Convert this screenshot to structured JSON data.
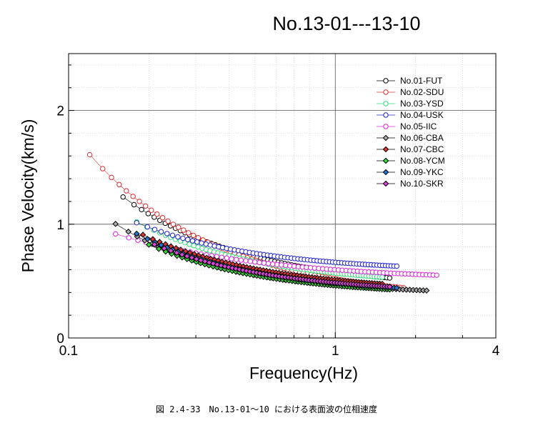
{
  "chart_data": {
    "type": "scatter",
    "title": "No.13-01---13-10",
    "xlabel": "Frequency(Hz)",
    "ylabel": "Phase Velocity(km/s)",
    "x_scale": "log",
    "xlim": [
      0.1,
      4
    ],
    "ylim": [
      0,
      2.5
    ],
    "x_ticks": [
      "0.1",
      "1",
      "4"
    ],
    "y_ticks": [
      "0",
      "1",
      "2"
    ],
    "grid": true,
    "legend_position": "top-right",
    "series": [
      {
        "name": "No.01-FUT",
        "color": "#000000",
        "marker": "circle",
        "fmin": 0.16,
        "fmax": 1.6,
        "a": 0.43,
        "b": 0.15,
        "c": 0.92
      },
      {
        "name": "No.02-SDU",
        "color": "#e03030",
        "marker": "circle",
        "fmin": 0.12,
        "fmax": 1.8,
        "a": 0.33,
        "b": 0.19,
        "c": 0.9
      },
      {
        "name": "No.03-YSD",
        "color": "#33dd77",
        "marker": "circle",
        "fmin": 0.18,
        "fmax": 1.5,
        "a": 0.46,
        "b": 0.11,
        "c": 0.95
      },
      {
        "name": "No.04-USK",
        "color": "#2222cc",
        "marker": "circle",
        "fmin": 0.18,
        "fmax": 1.7,
        "a": 0.58,
        "b": 0.085,
        "c": 0.95
      },
      {
        "name": "No.05-IIC",
        "color": "#dd22dd",
        "marker": "circle",
        "fmin": 0.15,
        "fmax": 2.4,
        "a": 0.5,
        "b": 0.1,
        "c": 0.75
      },
      {
        "name": "No.06-CBA",
        "color": "#000000",
        "fill": "#aaaaaa",
        "marker": "diamond",
        "fmin": 0.15,
        "fmax": 2.2,
        "a": 0.38,
        "b": 0.085,
        "c": 1.05
      },
      {
        "name": "No.07-CBC",
        "color": "#000000",
        "fill": "#dd3333",
        "marker": "diamond",
        "fmin": 0.19,
        "fmax": 1.5,
        "a": 0.4,
        "b": 0.11,
        "c": 0.92
      },
      {
        "name": "No.08-YCM",
        "color": "#000000",
        "fill": "#33dd33",
        "marker": "diamond",
        "fmin": 0.2,
        "fmax": 1.6,
        "a": 0.37,
        "b": 0.09,
        "c": 1.0
      },
      {
        "name": "No.09-YKC",
        "color": "#000000",
        "fill": "#2277dd",
        "marker": "diamond",
        "fmin": 0.18,
        "fmax": 1.7,
        "a": 0.38,
        "b": 0.1,
        "c": 0.98
      },
      {
        "name": "No.10-SKR",
        "color": "#000000",
        "fill": "#dd44dd",
        "marker": "diamond",
        "fmin": 0.21,
        "fmax": 1.6,
        "a": 0.39,
        "b": 0.095,
        "c": 0.97
      }
    ]
  },
  "caption": "図 2.4-33　No.13-01～10 における表面波の位相速度"
}
